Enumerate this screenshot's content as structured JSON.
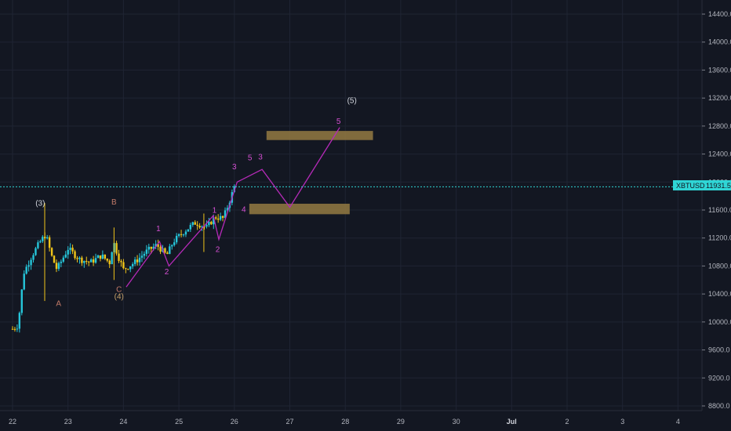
{
  "symbol": "XBTUSD",
  "last_price": "11931.5",
  "colors": {
    "background": "#131722",
    "grid": "#1f2433",
    "candle_up": "#26c6da",
    "candle_down": "#f0c419",
    "wave_line": "#b52ab8",
    "zone": "#8d7440",
    "price_line": "#2fd5d5",
    "label_tan": "#c9a46a",
    "label_white": "#d1d4dc",
    "label_wave": "#d44fd1",
    "label_corr": "#c27a69"
  },
  "y_axis": {
    "ticks": [
      "14400.0",
      "14000.0",
      "13600.0",
      "13200.0",
      "12800.0",
      "12400.0",
      "12000.0",
      "11600.0",
      "11200.0",
      "10800.0",
      "10400.0",
      "10000.0",
      "9600.0",
      "9200.0",
      "8800.0"
    ]
  },
  "x_axis": {
    "ticks": [
      "22",
      "23",
      "24",
      "25",
      "26",
      "27",
      "28",
      "29",
      "30",
      "Jul",
      "2",
      "3",
      "4"
    ]
  },
  "wave_labels": [
    {
      "text": "(3)",
      "price": 11660,
      "day": 22.5
    },
    {
      "text": "A",
      "price": 10230,
      "day": 22.83
    },
    {
      "text": "B",
      "price": 11680,
      "day": 23.83
    },
    {
      "text": "C",
      "price": 10430,
      "day": 23.92
    },
    {
      "text": "(4)",
      "price": 10330,
      "day": 23.92
    },
    {
      "text": "1",
      "price": 11300,
      "day": 24.63
    },
    {
      "text": "2",
      "price": 10680,
      "day": 24.78
    },
    {
      "text": "1",
      "price": 11560,
      "day": 25.64
    },
    {
      "text": "2",
      "price": 11000,
      "day": 25.7
    },
    {
      "text": "3",
      "price": 12180,
      "day": 26.0
    },
    {
      "text": "4",
      "price": 11570,
      "day": 26.17
    },
    {
      "text": "5",
      "price": 12310,
      "day": 26.28
    },
    {
      "text": "3",
      "price": 12320,
      "day": 26.47
    },
    {
      "text": "5",
      "price": 12830,
      "day": 27.88
    },
    {
      "text": "(5)",
      "price": 13130,
      "day": 28.12
    }
  ]
}
